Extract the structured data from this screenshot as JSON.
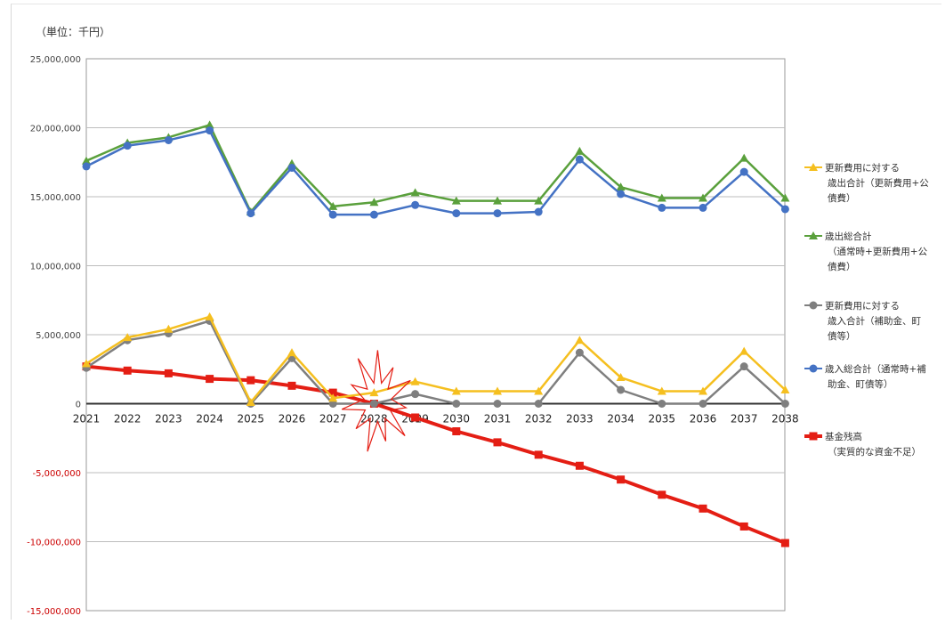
{
  "unit_label": "（単位：千円）",
  "colors": {
    "renewal_expenditure": "#f5bf1f",
    "total_expenditure": "#5aa03c",
    "renewal_revenue": "#7f7f7f",
    "total_revenue": "#4472c4",
    "fund_balance": "#e41e14",
    "negative_tick": "#cc0000",
    "burst": "#e41e14"
  },
  "chart_data": {
    "type": "line",
    "title": "",
    "xlabel": "",
    "ylabel": "",
    "ylim": [
      -15000000,
      25000000
    ],
    "yticks": [
      25000000,
      20000000,
      15000000,
      10000000,
      5000000,
      0,
      -5000000,
      -10000000,
      -15000000
    ],
    "ytick_labels": [
      "25,000,000",
      "20,000,000",
      "15,000,000",
      "10,000,000",
      "5,000,000",
      "0",
      "-5,000,000",
      "-10,000,000",
      "-15,000,000"
    ],
    "categories": [
      "2021",
      "2022",
      "2023",
      "2024",
      "2025",
      "2026",
      "2027",
      "2028",
      "2029",
      "2030",
      "2031",
      "2032",
      "2033",
      "2034",
      "2035",
      "2036",
      "2037",
      "2038"
    ],
    "legend_position": "right",
    "grid": true,
    "annotation": "burst",
    "annotation_category": "2028",
    "series": [
      {
        "key": "renewal_expenditure",
        "legend": [
          "更新費用に対する",
          "歳出合計（更新費用+公",
          "債費）"
        ],
        "marker": "triangle",
        "values": [
          2900000,
          4800000,
          5400000,
          6300000,
          100000,
          3700000,
          400000,
          800000,
          1600000,
          900000,
          900000,
          900000,
          4600000,
          1900000,
          900000,
          900000,
          3800000,
          1000000
        ]
      },
      {
        "key": "total_expenditure",
        "legend": [
          "歳出総合計",
          "（通常時+更新費用+公",
          "債費）"
        ],
        "marker": "triangle",
        "values": [
          17600000,
          18900000,
          19300000,
          20200000,
          13900000,
          17400000,
          14300000,
          14600000,
          15300000,
          14700000,
          14700000,
          14700000,
          18300000,
          15700000,
          14900000,
          14900000,
          17800000,
          14900000
        ]
      },
      {
        "key": "renewal_revenue",
        "legend": [
          "更新費用に対する",
          "歳入合計（補助金、町",
          "債等）"
        ],
        "marker": "circle",
        "values": [
          2600000,
          4600000,
          5100000,
          6000000,
          0,
          3300000,
          0,
          0,
          700000,
          0,
          0,
          0,
          3700000,
          1000000,
          0,
          0,
          2700000,
          0
        ]
      },
      {
        "key": "total_revenue",
        "legend": [
          "歳入総合計（通常時+補",
          "助金、町債等）"
        ],
        "marker": "circle",
        "values": [
          17200000,
          18700000,
          19100000,
          19800000,
          13800000,
          17100000,
          13700000,
          13700000,
          14400000,
          13800000,
          13800000,
          13900000,
          17700000,
          15200000,
          14200000,
          14200000,
          16800000,
          14100000
        ]
      },
      {
        "key": "fund_balance",
        "legend": [
          "基金残高",
          "（実質的な資金不足）"
        ],
        "marker": "square",
        "values": [
          2700000,
          2400000,
          2200000,
          1800000,
          1700000,
          1300000,
          800000,
          0,
          -1000000,
          -2000000,
          -2800000,
          -3700000,
          -4500000,
          -5500000,
          -6600000,
          -7600000,
          -8900000,
          -10100000
        ]
      }
    ]
  }
}
